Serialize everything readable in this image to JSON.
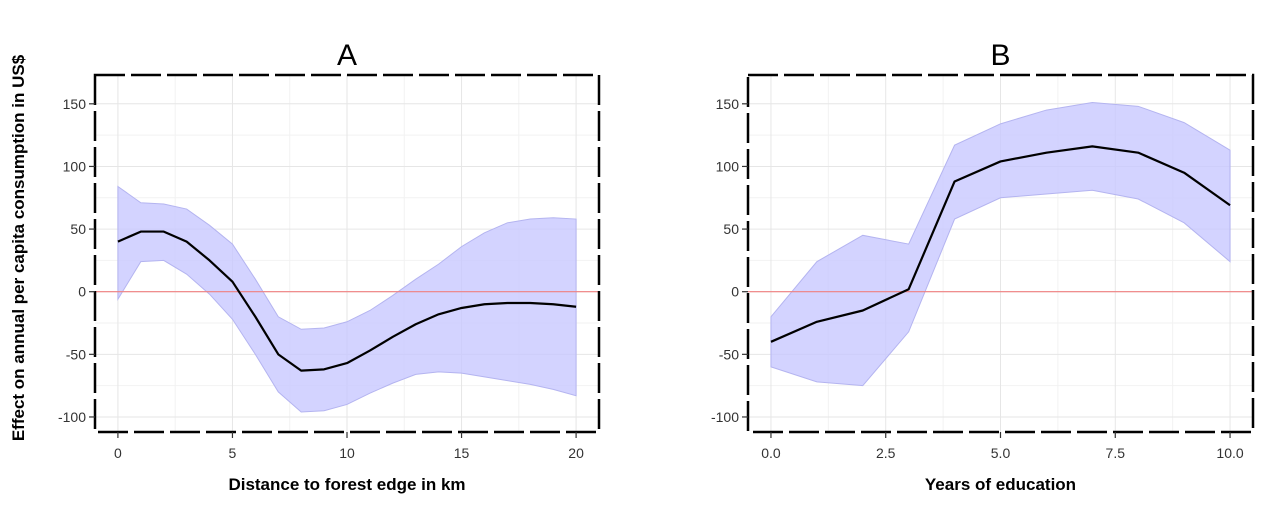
{
  "y_axis_label": "Effect on annual per capita consumption in US$",
  "chart_data": [
    {
      "type": "line",
      "title": "A",
      "xlabel": "Distance to forest edge in km",
      "ylabel": "Effect on annual per capita consumption in US$",
      "xlim": [
        -1,
        21
      ],
      "ylim": [
        -112,
        173
      ],
      "x_ticks": [
        0,
        5,
        10,
        15,
        20
      ],
      "x_tick_labels": [
        "0",
        "5",
        "10",
        "15",
        "20"
      ],
      "y_ticks": [
        -100,
        -50,
        0,
        50,
        100,
        150
      ],
      "y_tick_labels": [
        "-100",
        "-50",
        "0",
        "50",
        "100",
        "150"
      ],
      "grid": true,
      "reference_line": {
        "y": 0,
        "color": "#f08080"
      },
      "x": [
        0,
        1,
        2,
        3,
        4,
        5,
        6,
        7,
        8,
        9,
        10,
        11,
        12,
        13,
        14,
        15,
        16,
        17,
        18,
        19,
        20
      ],
      "series": [
        {
          "values": [
            40,
            48,
            48,
            40,
            25,
            8,
            -20,
            -50,
            -63,
            -62,
            -57,
            -47,
            -36,
            -26,
            -18,
            -13,
            -10,
            -9,
            -9,
            -10,
            -12
          ]
        }
      ],
      "band": {
        "lower": [
          -6,
          24,
          25,
          14,
          -2,
          -22,
          -50,
          -80,
          -96,
          -95,
          -90,
          -81,
          -73,
          -66,
          -64,
          -65,
          -68,
          -71,
          -74,
          -78,
          -83
        ],
        "upper": [
          84,
          71,
          70,
          66,
          53,
          38,
          10,
          -20,
          -30,
          -29,
          -24,
          -15,
          -3,
          10,
          22,
          36,
          47,
          55,
          58,
          59,
          58
        ],
        "color": "#c8c8ff"
      },
      "line_color": "#000000"
    },
    {
      "type": "line",
      "title": "B",
      "xlabel": "Years of education",
      "ylabel": "",
      "xlim": [
        -0.5,
        10.5
      ],
      "ylim": [
        -112,
        173
      ],
      "x_ticks": [
        0,
        2.5,
        5,
        7.5,
        10
      ],
      "x_tick_labels": [
        "0.0",
        "2.5",
        "5.0",
        "7.5",
        "10.0"
      ],
      "y_ticks": [
        -100,
        -50,
        0,
        50,
        100,
        150
      ],
      "y_tick_labels": [
        "-100",
        "-50",
        "0",
        "50",
        "100",
        "150"
      ],
      "grid": true,
      "reference_line": {
        "y": 0,
        "color": "#f08080"
      },
      "x": [
        0,
        1,
        2,
        3,
        4,
        5,
        6,
        7,
        8,
        9,
        10
      ],
      "series": [
        {
          "values": [
            -40,
            -24,
            -15,
            2,
            88,
            104,
            111,
            116,
            111,
            95,
            69
          ]
        }
      ],
      "band": {
        "lower": [
          -60,
          -72,
          -75,
          -32,
          58,
          75,
          78,
          81,
          74,
          55,
          24
        ],
        "upper": [
          -20,
          24,
          45,
          38,
          117,
          134,
          145,
          151,
          148,
          135,
          113
        ],
        "color": "#c8c8ff"
      },
      "line_color": "#000000"
    }
  ]
}
